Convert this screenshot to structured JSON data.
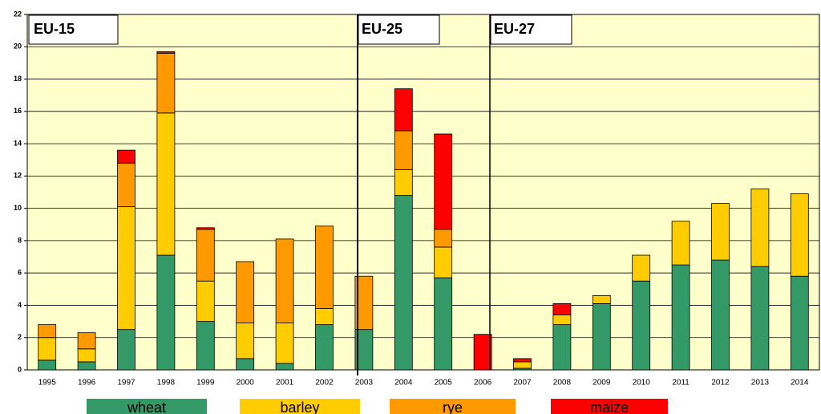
{
  "chart_data": {
    "type": "stacked_bar",
    "annotations": [
      "EU-15",
      "EU-25",
      "EU-27"
    ],
    "categories": [
      "1995",
      "1996",
      "1997",
      "1998",
      "1999",
      "2000",
      "2001",
      "2002",
      "2003",
      "2004",
      "2005",
      "2006",
      "2007",
      "2008",
      "2009",
      "2010",
      "2011",
      "2012",
      "2013",
      "2014"
    ],
    "series": [
      {
        "name": "wheat",
        "color": "#339966",
        "values": [
          0.6,
          0.5,
          2.5,
          7.1,
          3.0,
          0.7,
          0.4,
          2.8,
          2.5,
          10.8,
          5.7,
          0,
          0.1,
          2.8,
          4.1,
          5.5,
          6.5,
          6.8,
          6.4,
          5.8
        ]
      },
      {
        "name": "barley",
        "color": "#ffcc00",
        "values": [
          1.4,
          0.8,
          7.6,
          8.8,
          2.5,
          2.2,
          2.5,
          1.0,
          0,
          1.6,
          1.9,
          0,
          0.4,
          0.6,
          0.5,
          1.6,
          2.7,
          3.5,
          4.8,
          5.1
        ]
      },
      {
        "name": "rye",
        "color": "#ff9900",
        "values": [
          0.8,
          1.0,
          2.7,
          3.7,
          3.2,
          3.8,
          5.2,
          5.1,
          3.3,
          2.4,
          1.1,
          0,
          0,
          0,
          0,
          0,
          0,
          0,
          0,
          0
        ]
      },
      {
        "name": "maize",
        "color": "#ff0000",
        "values": [
          0,
          0,
          0.8,
          0.1,
          0.1,
          0,
          0,
          0,
          0,
          2.6,
          5.9,
          2.2,
          0.2,
          0.7,
          0,
          0,
          0,
          0,
          0,
          0
        ]
      }
    ],
    "ylim": [
      0,
      22
    ],
    "yticks": [
      0,
      2,
      4,
      6,
      8,
      10,
      12,
      14,
      16,
      18,
      20,
      22
    ],
    "grid": true
  }
}
